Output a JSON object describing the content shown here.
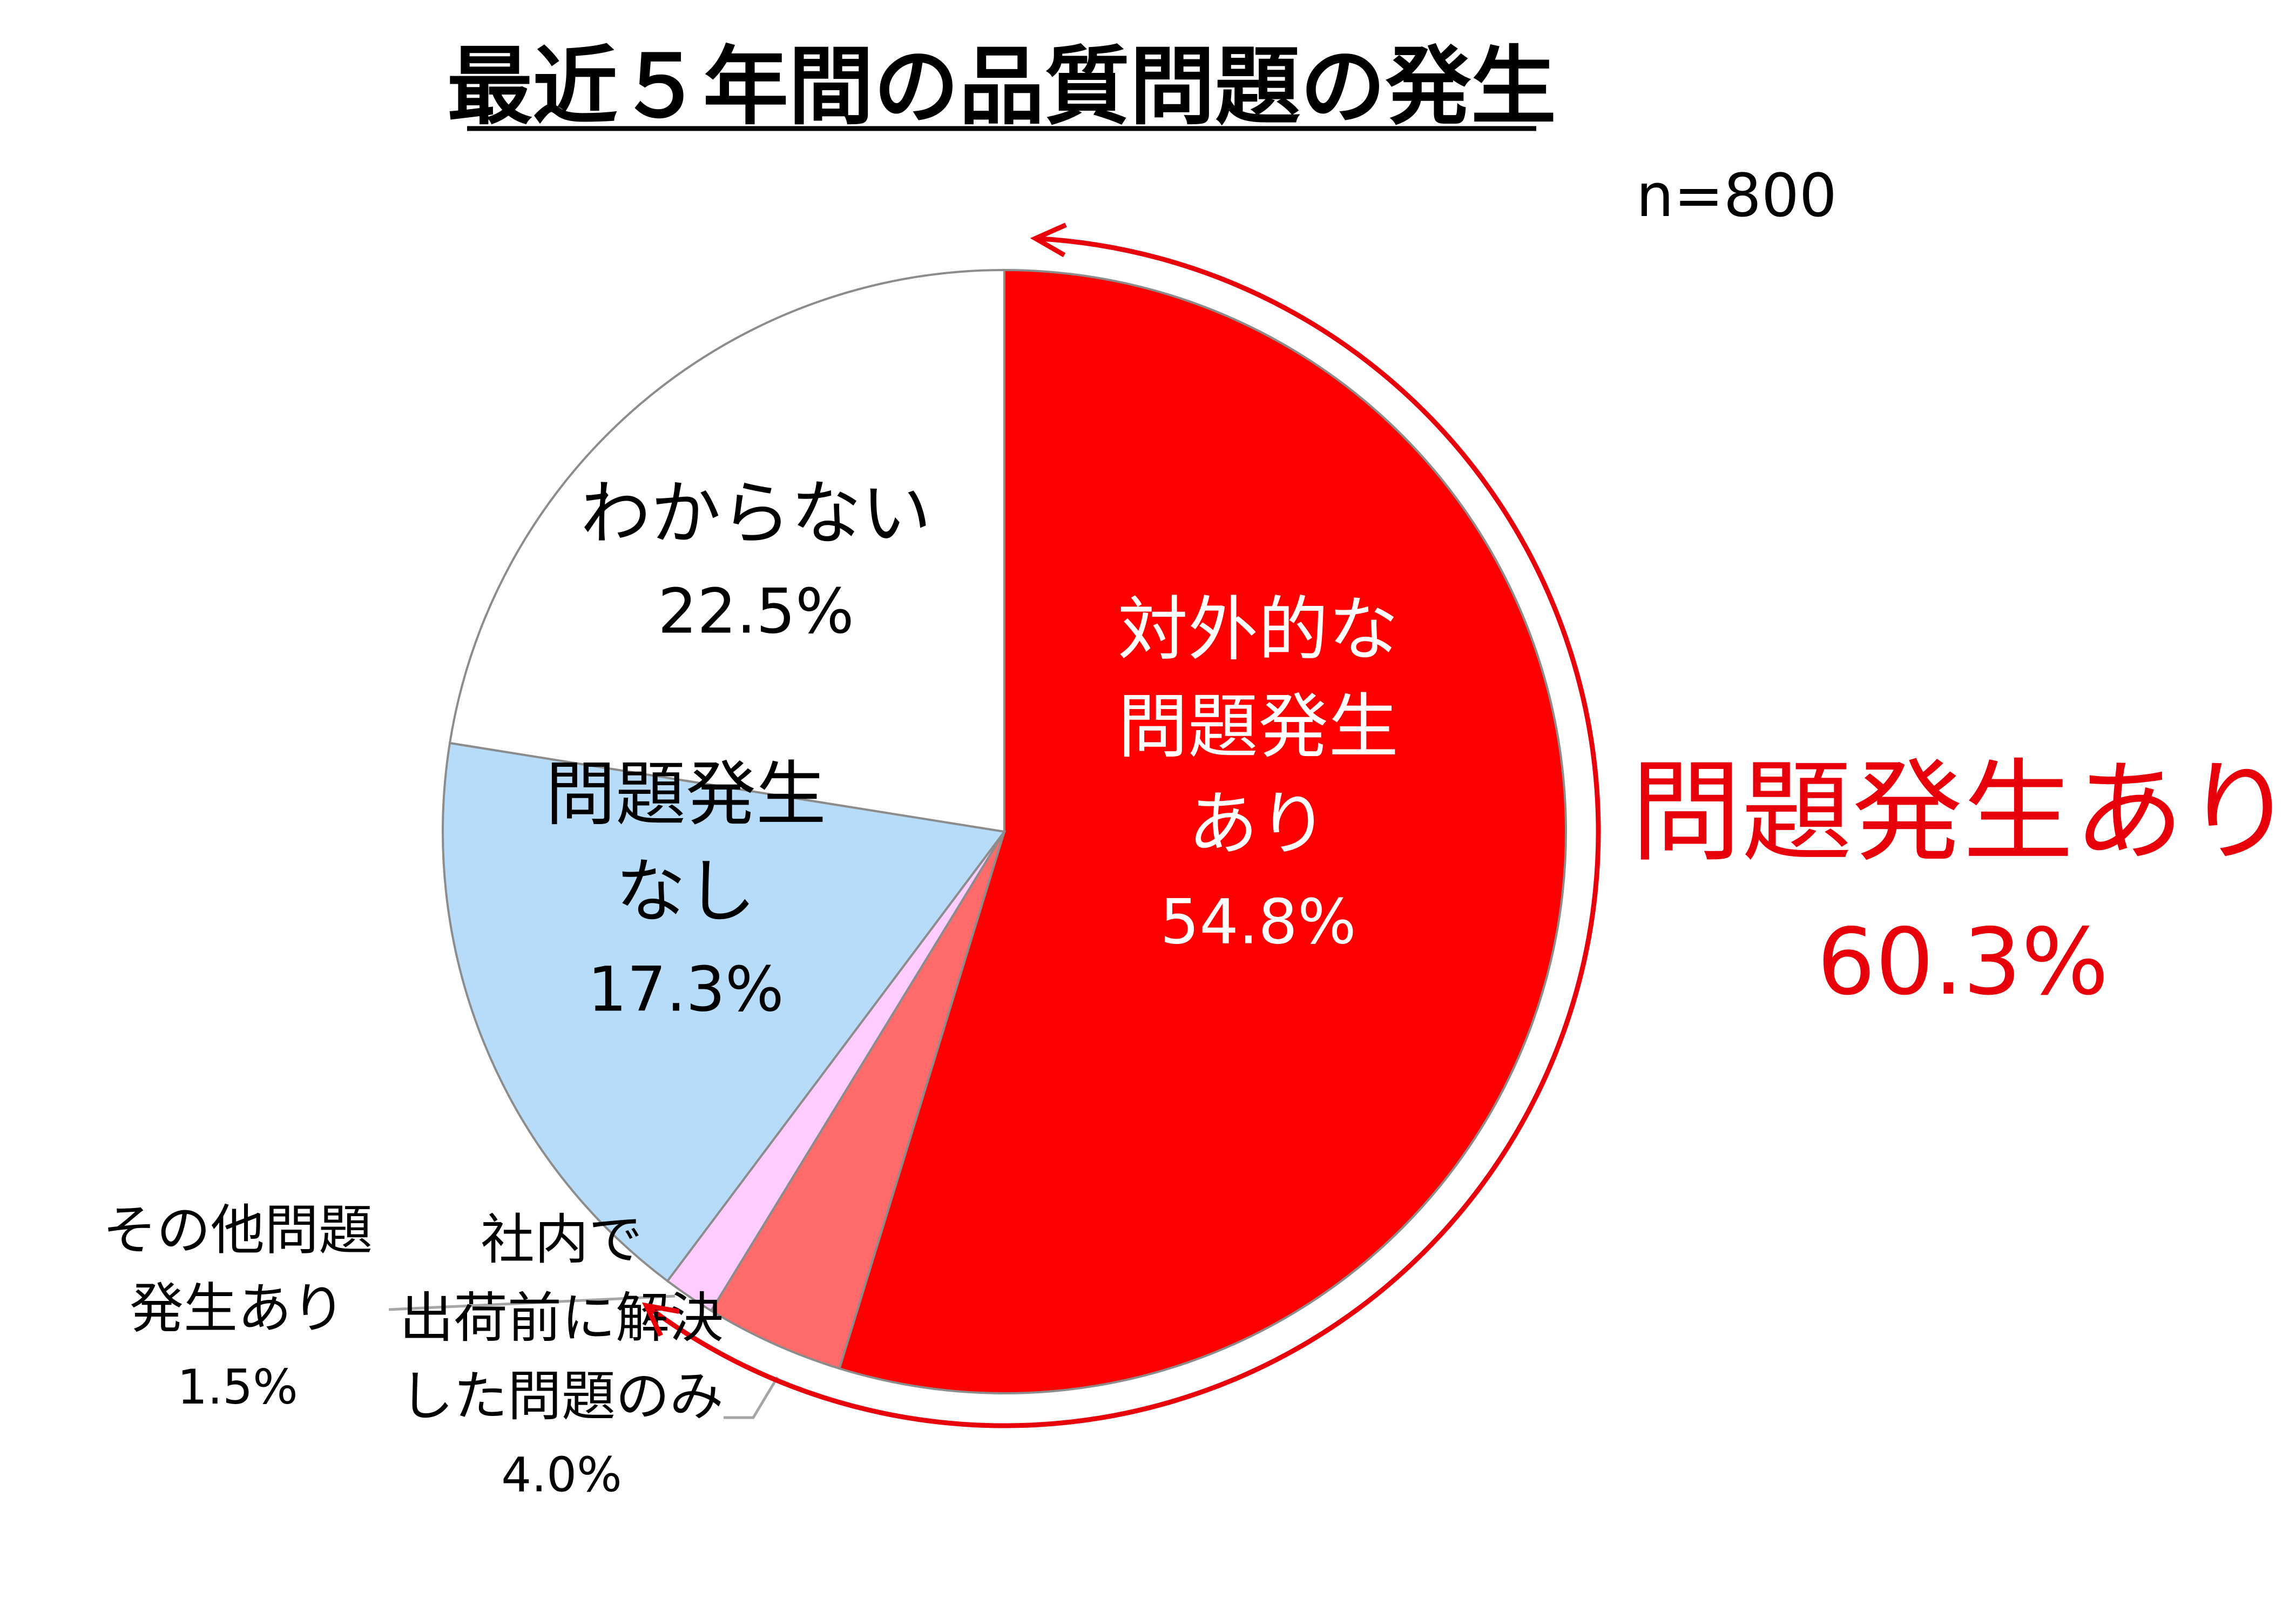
{
  "chart_data": {
    "type": "pie",
    "title": "最近５年間の品質問題の発生",
    "sample_size": "n=800",
    "slices": [
      {
        "lines": [
          "対外的な",
          "問題発生",
          "あり"
        ],
        "value_label": "54.8%",
        "value": 54.8,
        "color": "#ff0000",
        "text_color": "#ffffff"
      },
      {
        "lines": [
          "社内で",
          "出荷前に解決",
          "した問題のみ"
        ],
        "value_label": "4.0%",
        "value": 4.0,
        "color": "#ff6b6b",
        "text_color": "#000000"
      },
      {
        "lines": [
          "その他問題",
          "発生あり"
        ],
        "value_label": "1.5%",
        "value": 1.5,
        "color": "#ffccff",
        "text_color": "#000000"
      },
      {
        "lines": [
          "問題発生",
          "なし"
        ],
        "value_label": "17.3%",
        "value": 17.3,
        "color": "#b7dcf9",
        "text_color": "#000000"
      },
      {
        "lines": [
          "わからない"
        ],
        "value_label": "22.5%",
        "value": 22.5,
        "color": "#ffffff",
        "text_color": "#000000"
      }
    ],
    "group_annotation": {
      "label": "問題発生あり",
      "value_label": "60.3%",
      "value": 60.3,
      "color": "#e8000b"
    }
  }
}
